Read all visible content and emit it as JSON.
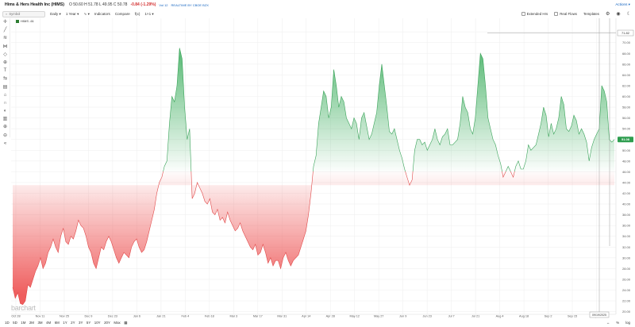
{
  "header": {
    "title": "Hims & Hers Health Inc (HIMS)",
    "quote": "O 50.60 H 51.78 L 49.95 C 50.78",
    "change": "-0.84 (-1.29%)",
    "volume": "Vol 12",
    "realtime": "REALTIME BY CBOE BZX",
    "actions_label": "Actions"
  },
  "toolbar": {
    "search_placeholder": "Symbol",
    "period": "Daily",
    "range": "1 Year",
    "indicators": "Indicators",
    "compare": "Compare",
    "fx": "f(x)",
    "layout": "1×1",
    "extended_hrs": "Extended Hrs",
    "real_flows": "Real Flows",
    "templates": "Templates"
  },
  "legend": {
    "symbol": "HIMS",
    "suffix": "-61"
  },
  "watermark": "barchart",
  "bottom": {
    "periods": [
      "1D",
      "5D",
      "1M",
      "2M",
      "3M",
      "4M",
      "6M",
      "1Y",
      "2Y",
      "3Y",
      "5Y",
      "10Y",
      "20Y",
      "Max"
    ],
    "log": "log",
    "pct": "%",
    "zoom": "↔"
  },
  "chart_data": {
    "type": "area",
    "baseline": 43.5,
    "ylim": [
      19.5,
      73.5
    ],
    "yticks": [
      20,
      22,
      24,
      26,
      28,
      30,
      32,
      34,
      36,
      38,
      40,
      42,
      44,
      46,
      48,
      50,
      52,
      54,
      56,
      58,
      60,
      62,
      64,
      66,
      68,
      70,
      72
    ],
    "current_price": "51.08",
    "crosshair_price": "71.82",
    "crosshair_date": "09/19/2025",
    "xticks": [
      "Oct 28",
      "Nov 11",
      "Nov 25",
      "Dec 9",
      "Dec 23",
      "Jan 6",
      "Jan 21",
      "Feb 4",
      "Feb 18",
      "Mar 3",
      "Mar 17",
      "Mar 31",
      "Apr 14",
      "Apr 28",
      "May 12",
      "May 27",
      "Jun 9",
      "Jun 23",
      "Jul 7",
      "Jul 21",
      "Aug 4",
      "Aug 18",
      "Sep 2",
      "Sep 15",
      "Sep 29"
    ],
    "series": [
      {
        "values": [
          24.5,
          22.5,
          23.5,
          21.5,
          21.3,
          22,
          25,
          24.5,
          26,
          27.5,
          28.5,
          30,
          28,
          29,
          31,
          32,
          33.5,
          32,
          31,
          34,
          35.5,
          33,
          32.5,
          34,
          33.5,
          35,
          37,
          36,
          35.5,
          34,
          32,
          31,
          29,
          28,
          30,
          32,
          31.5,
          33,
          34,
          33,
          31.5,
          30,
          29,
          30,
          31,
          30.5,
          30,
          32,
          33,
          33.5,
          32,
          31,
          31.5,
          33,
          35,
          37,
          39,
          42,
          44,
          45,
          47,
          48,
          55,
          60,
          59,
          62,
          69,
          67,
          58,
          52,
          54,
          41,
          42,
          44,
          43,
          42,
          40.5,
          40,
          41,
          38.5,
          38,
          39,
          37,
          37.5,
          36.5,
          38.5,
          37,
          36,
          35,
          35.5,
          36.5,
          35,
          34,
          33,
          32,
          31.5,
          32.5,
          30.5,
          31,
          32.5,
          31,
          29,
          30,
          28.5,
          29.5,
          29.5,
          28,
          30,
          31,
          29.5,
          28.5,
          29.5,
          30,
          30.5,
          32,
          33.5,
          35,
          38,
          42,
          47,
          49,
          55,
          58,
          61,
          60,
          56,
          58,
          65,
          62,
          58,
          60,
          59,
          56,
          55,
          54,
          56,
          55,
          52,
          56,
          57,
          54.5,
          52,
          53,
          55,
          57,
          62,
          66,
          62,
          58,
          53.5,
          53,
          54,
          52,
          50,
          48.5,
          46.5,
          45,
          43.5,
          44.5,
          50,
          52,
          52,
          51,
          51.5,
          50,
          51,
          52,
          54,
          52,
          51,
          52.5,
          53,
          54,
          51,
          51,
          51.5,
          52,
          55,
          60,
          58,
          57,
          54,
          53,
          56,
          62,
          68,
          67,
          62,
          56,
          54,
          52,
          51,
          49,
          47.5,
          45,
          46,
          47,
          46,
          45,
          47,
          48,
          46.5,
          46.5,
          48,
          51,
          50,
          50.5,
          51,
          53,
          55,
          58,
          56.5,
          52.5,
          55,
          53,
          54,
          56,
          60,
          58.5,
          54,
          53.5,
          54.5,
          56.5,
          55.5,
          53,
          54,
          53,
          51.5,
          48,
          50.5,
          52,
          53,
          54,
          62,
          61,
          59,
          52,
          51.5,
          52
        ]
      }
    ]
  }
}
